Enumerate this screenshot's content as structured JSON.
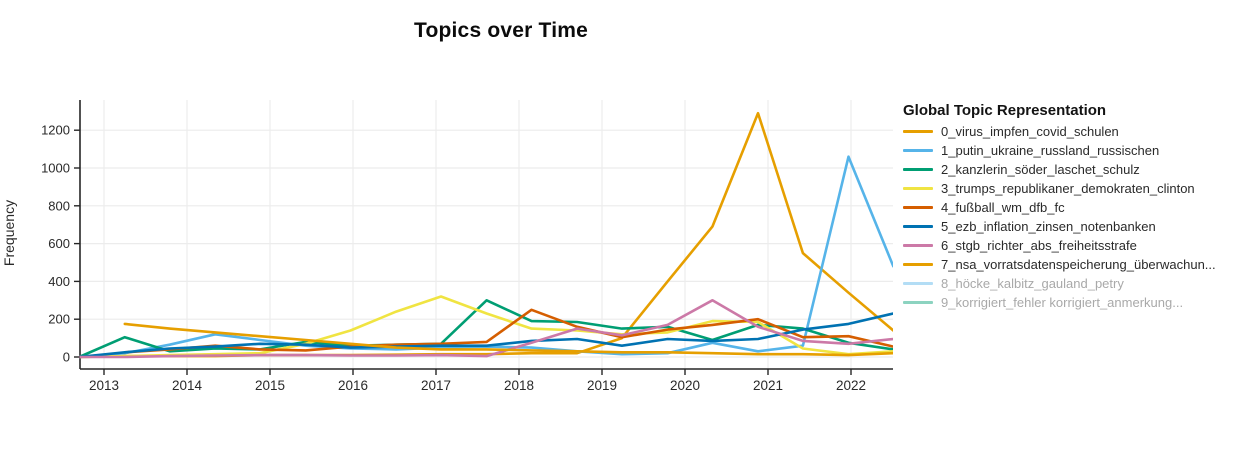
{
  "title": "Topics over Time",
  "legend": {
    "title": "Global Topic Representation"
  },
  "axes": {
    "y_label": "Frequency",
    "y_ticks": [
      0,
      200,
      400,
      600,
      800,
      1000,
      1200
    ],
    "x_ticks": [
      2013,
      2014,
      2015,
      2016,
      2017,
      2018,
      2019,
      2020,
      2021,
      2022
    ]
  },
  "chart_data": {
    "type": "line",
    "title": "Topics over Time",
    "xlabel": "",
    "ylabel": "Frequency",
    "grid": true,
    "legend_position": "right",
    "legend_title": "Global Topic Representation",
    "xlim": [
      2012.7,
      2022.51
    ],
    "ylim": [
      -65,
      1375
    ],
    "x_tick_labels": [
      2013,
      2014,
      2015,
      2016,
      2017,
      2018,
      2019,
      2020,
      2021,
      2022
    ],
    "y_tick_labels": [
      0,
      200,
      400,
      600,
      800,
      1000,
      1200
    ],
    "x": [
      2012.7,
      2013.25,
      2013.79,
      2014.34,
      2014.88,
      2015.43,
      2015.97,
      2016.52,
      2017.06,
      2017.61,
      2018.15,
      2018.7,
      2019.24,
      2019.79,
      2020.33,
      2020.88,
      2021.42,
      2021.97,
      2022.51
    ],
    "series": [
      {
        "name": "0_virus_impfen_covid_schulen",
        "color": "#E69F00",
        "hidden": false,
        "values": [
          0,
          5,
          5,
          5,
          10,
          10,
          10,
          12,
          15,
          15,
          20,
          20,
          100,
          400,
          690,
          1290,
          550,
          340,
          140
        ]
      },
      {
        "name": "1_putin_ukraine_russland_russischen",
        "color": "#56B4E9",
        "hidden": false,
        "values": [
          0,
          20,
          65,
          120,
          90,
          60,
          45,
          40,
          50,
          55,
          50,
          30,
          15,
          20,
          75,
          30,
          60,
          1060,
          480
        ]
      },
      {
        "name": "2_kanzlerin_söder_laschet_schulz",
        "color": "#009E73",
        "hidden": false,
        "values": [
          0,
          105,
          30,
          45,
          40,
          80,
          60,
          65,
          70,
          300,
          190,
          185,
          150,
          160,
          90,
          170,
          150,
          75,
          40
        ]
      },
      {
        "name": "3_trumps_republikaner_demokraten_clinton",
        "color": "#F0E442",
        "hidden": false,
        "values": [
          0,
          5,
          10,
          15,
          20,
          70,
          140,
          240,
          320,
          230,
          150,
          140,
          120,
          130,
          190,
          185,
          45,
          15,
          30
        ]
      },
      {
        "name": "4_fußball_wm_dfb_fc",
        "color": "#D55E00",
        "hidden": false,
        "values": [
          null,
          25,
          40,
          60,
          40,
          35,
          55,
          65,
          70,
          80,
          250,
          160,
          105,
          145,
          170,
          200,
          105,
          110,
          55
        ]
      },
      {
        "name": "5_ezb_inflation_zinsen_notenbanken",
        "color": "#0072B2",
        "hidden": false,
        "values": [
          0,
          25,
          45,
          55,
          70,
          65,
          50,
          55,
          60,
          60,
          85,
          95,
          60,
          95,
          85,
          95,
          145,
          175,
          230
        ]
      },
      {
        "name": "6_stgb_richter_abs_freiheitsstrafe",
        "color": "#CC79A7",
        "hidden": false,
        "values": [
          0,
          0,
          5,
          8,
          10,
          10,
          8,
          8,
          10,
          5,
          75,
          150,
          115,
          170,
          300,
          160,
          85,
          70,
          95
        ]
      },
      {
        "name": "7_nsa_vorratsdatenspeicherung_überwachun...",
        "color": "#E69F00",
        "hidden": false,
        "values": [
          null,
          175,
          150,
          130,
          110,
          90,
          70,
          50,
          40,
          40,
          35,
          30,
          25,
          25,
          20,
          15,
          15,
          10,
          20
        ]
      },
      {
        "name": "8_höcke_kalbitz_gauland_petry",
        "color": "#56B4E9",
        "hidden": true,
        "values": []
      },
      {
        "name": "9_korrigiert_fehler korrigiert_anmerkung...",
        "color": "#009E73",
        "hidden": true,
        "values": []
      }
    ]
  },
  "style_colors": {
    "axis_line": "#262626",
    "grid_line": "#ececec",
    "tick_label": "#2a2a2a",
    "legend_hidden_text": "#a9a9a9"
  }
}
